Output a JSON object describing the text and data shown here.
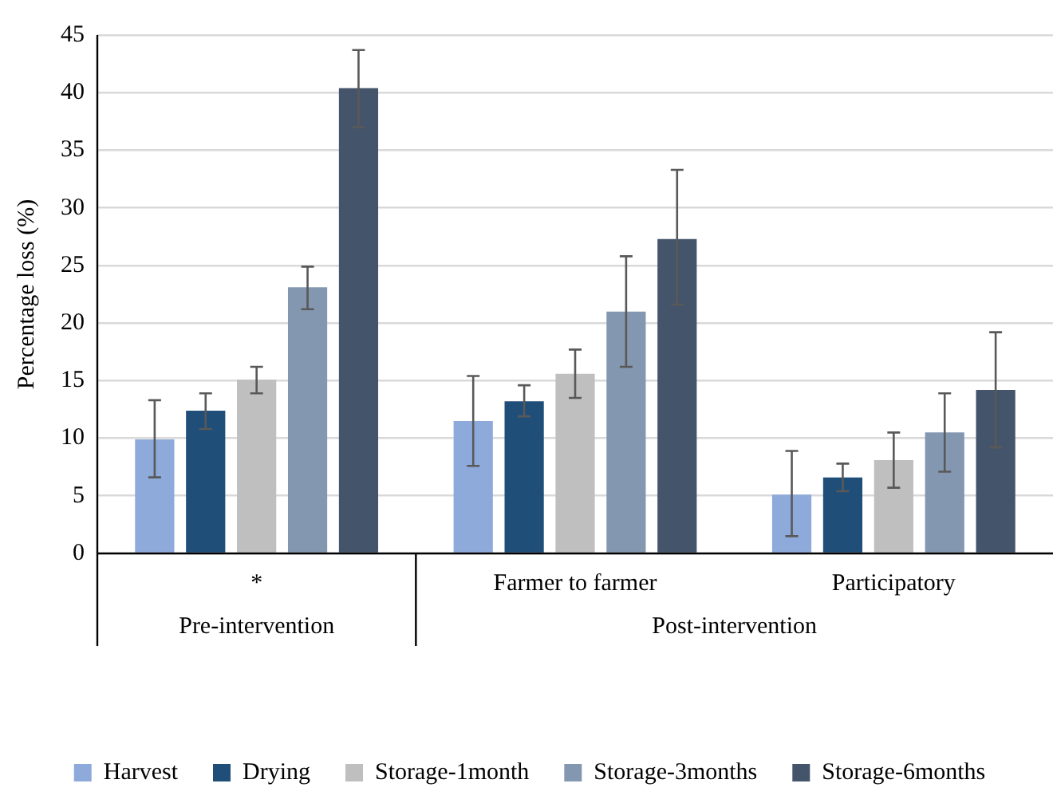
{
  "chart_data": {
    "type": "bar",
    "ylabel": "Percentage loss (%)",
    "categories": [
      "*",
      "Farmer to farmer",
      "Participatory"
    ],
    "annotations": [
      "Pre-intervention",
      "Post-intervention"
    ],
    "ylim": [
      0,
      45
    ],
    "yticks": [
      0,
      5,
      10,
      15,
      20,
      25,
      30,
      35,
      40,
      45
    ],
    "grid": "y",
    "legend": "bottom",
    "series": [
      {
        "name": "Harvest",
        "color": "#8eaadb",
        "values": [
          9.9,
          11.5,
          5.1
        ],
        "errors": [
          [
            6.6,
            13.3
          ],
          [
            7.6,
            15.4
          ],
          [
            1.5,
            8.9
          ]
        ]
      },
      {
        "name": "Drying",
        "color": "#1f4e79",
        "values": [
          12.4,
          13.2,
          6.6
        ],
        "errors": [
          [
            10.8,
            13.9
          ],
          [
            11.9,
            14.6
          ],
          [
            5.4,
            7.8
          ]
        ]
      },
      {
        "name": "Storage-1month",
        "color": "#bfbfbf",
        "values": [
          15.1,
          15.6,
          8.1
        ],
        "errors": [
          [
            13.9,
            16.2
          ],
          [
            13.5,
            17.7
          ],
          [
            5.7,
            10.5
          ]
        ]
      },
      {
        "name": "Storage-3months",
        "color": "#8497b0",
        "values": [
          23.1,
          21.0,
          10.5
        ],
        "errors": [
          [
            21.2,
            24.9
          ],
          [
            16.2,
            25.8
          ],
          [
            7.1,
            13.9
          ]
        ]
      },
      {
        "name": "Storage-6months",
        "color": "#44546a",
        "values": [
          40.4,
          27.3,
          14.2
        ],
        "errors": [
          [
            37.0,
            43.7
          ],
          [
            21.6,
            33.3
          ],
          [
            9.2,
            19.2
          ]
        ]
      }
    ]
  }
}
